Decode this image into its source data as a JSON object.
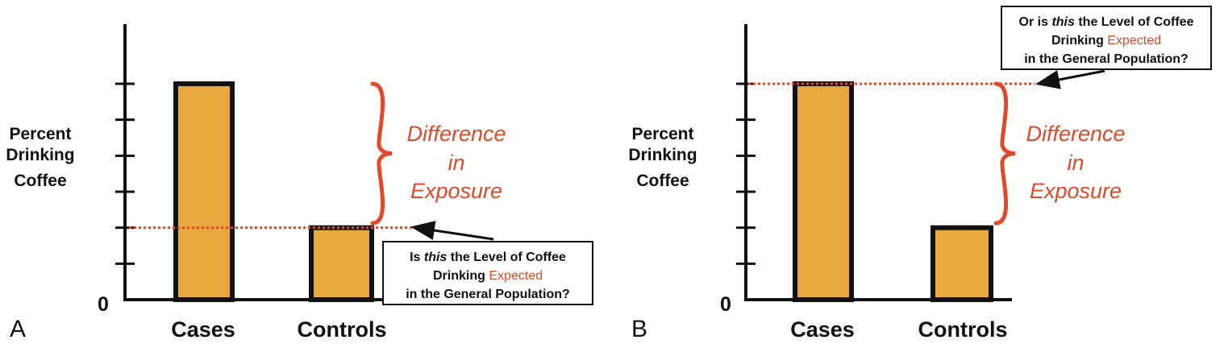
{
  "colors": {
    "bar": "#e8a83e",
    "accent": "#e04a2a",
    "ink": "#111111"
  },
  "chart_data": [
    {
      "type": "bar",
      "panel_label": "A",
      "ylabel_lines": [
        "Percent",
        "Drinking",
        "Coffee"
      ],
      "zero_label": "0",
      "categories": [
        "Cases",
        "Controls"
      ],
      "values": [
        6,
        2
      ],
      "ylim": [
        0,
        6
      ],
      "yticks": [
        1,
        2,
        3,
        4,
        5,
        6
      ],
      "reference_level": 2,
      "brace_text": [
        "Difference",
        "in",
        "Exposure"
      ],
      "callout": [
        [
          {
            "text": "Is ",
            "style": "normal"
          },
          {
            "text": "this",
            "style": "italic"
          },
          {
            "text": " the Level of Coffee",
            "style": "normal"
          }
        ],
        [
          {
            "text": "Drinking ",
            "style": "normal"
          },
          {
            "text": "Expected",
            "style": "accent"
          }
        ],
        [
          {
            "text": "in the General Population?",
            "style": "normal"
          }
        ]
      ]
    },
    {
      "type": "bar",
      "panel_label": "B",
      "ylabel_lines": [
        "Percent",
        "Drinking",
        "Coffee"
      ],
      "zero_label": "0",
      "categories": [
        "Cases",
        "Controls"
      ],
      "values": [
        6,
        2
      ],
      "ylim": [
        0,
        6
      ],
      "yticks": [
        1,
        2,
        3,
        4,
        5,
        6
      ],
      "reference_level": 6,
      "brace_text": [
        "Difference",
        "in",
        "Exposure"
      ],
      "callout": [
        [
          {
            "text": "Or is ",
            "style": "normal"
          },
          {
            "text": "this",
            "style": "italic"
          },
          {
            "text": " the Level of Coffee",
            "style": "normal"
          }
        ],
        [
          {
            "text": "Drinking ",
            "style": "normal"
          },
          {
            "text": "Expected",
            "style": "accent"
          }
        ],
        [
          {
            "text": "in the General Population?",
            "style": "normal"
          }
        ]
      ]
    }
  ]
}
